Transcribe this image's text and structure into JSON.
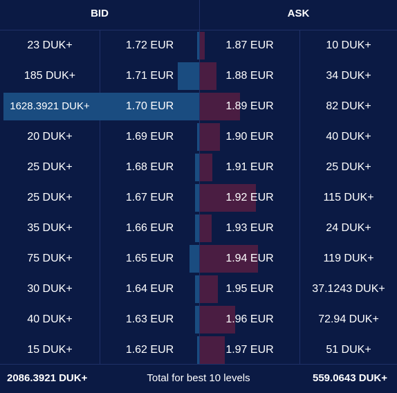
{
  "headers": {
    "bid": "BID",
    "ask": "ASK"
  },
  "colors": {
    "background": "#0b1a44",
    "bid_bar": "#1a4c80",
    "ask_bar": "#4a1d42",
    "divider": "#1f3068"
  },
  "rows": [
    {
      "bid_qty": "23 DUK+",
      "bid_price": "1.72 EUR",
      "ask_price": "1.87 EUR",
      "ask_qty": "10 DUK+",
      "bid_depth": 0.01,
      "ask_depth": 0.08
    },
    {
      "bid_qty": "185 DUK+",
      "bid_price": "1.71 EUR",
      "ask_price": "1.88 EUR",
      "ask_qty": "34 DUK+",
      "bid_depth": 0.11,
      "ask_depth": 0.28
    },
    {
      "bid_qty": "1628.3921 DUK+",
      "bid_price": "1.70 EUR",
      "ask_price": "1.89 EUR",
      "ask_qty": "82 DUK+",
      "bid_depth": 1.0,
      "ask_depth": 0.69
    },
    {
      "bid_qty": "20 DUK+",
      "bid_price": "1.69 EUR",
      "ask_price": "1.90 EUR",
      "ask_qty": "40 DUK+",
      "bid_depth": 0.01,
      "ask_depth": 0.34
    },
    {
      "bid_qty": "25 DUK+",
      "bid_price": "1.68 EUR",
      "ask_price": "1.91 EUR",
      "ask_qty": "25 DUK+",
      "bid_depth": 0.02,
      "ask_depth": 0.21
    },
    {
      "bid_qty": "25 DUK+",
      "bid_price": "1.67 EUR",
      "ask_price": "1.92 EUR",
      "ask_qty": "115 DUK+",
      "bid_depth": 0.02,
      "ask_depth": 0.97
    },
    {
      "bid_qty": "35 DUK+",
      "bid_price": "1.66 EUR",
      "ask_price": "1.93 EUR",
      "ask_qty": "24 DUK+",
      "bid_depth": 0.02,
      "ask_depth": 0.2
    },
    {
      "bid_qty": "75 DUK+",
      "bid_price": "1.65 EUR",
      "ask_price": "1.94 EUR",
      "ask_qty": "119 DUK+",
      "bid_depth": 0.05,
      "ask_depth": 1.0
    },
    {
      "bid_qty": "30 DUK+",
      "bid_price": "1.64 EUR",
      "ask_price": "1.95 EUR",
      "ask_qty": "37.1243 DUK+",
      "bid_depth": 0.02,
      "ask_depth": 0.31
    },
    {
      "bid_qty": "40 DUK+",
      "bid_price": "1.63 EUR",
      "ask_price": "1.96 EUR",
      "ask_qty": "72.94 DUK+",
      "bid_depth": 0.02,
      "ask_depth": 0.61
    },
    {
      "bid_qty": "15 DUK+",
      "bid_price": "1.62 EUR",
      "ask_price": "1.97 EUR",
      "ask_qty": "51 DUK+",
      "bid_depth": 0.01,
      "ask_depth": 0.43
    }
  ],
  "footer": {
    "bid_total": "2086.3921 DUK+",
    "label": "Total for best 10 levels",
    "ask_total": "559.0643 DUK+"
  }
}
